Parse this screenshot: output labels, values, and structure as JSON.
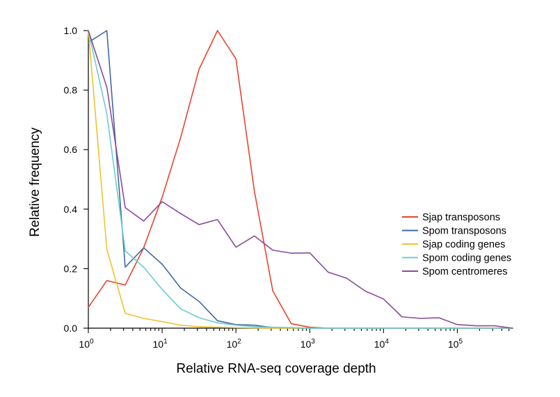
{
  "chart_data": {
    "type": "line",
    "x_scale": "log10",
    "xlabel": "Relative RNA-seq coverage depth",
    "ylabel": "Relative frequency",
    "xlim": [
      1,
      562341
    ],
    "ylim": [
      0,
      1
    ],
    "x_ticks": [
      {
        "value": 1,
        "base": "10",
        "exp": "0"
      },
      {
        "value": 10,
        "base": "10",
        "exp": "1"
      },
      {
        "value": 100,
        "base": "10",
        "exp": "2"
      },
      {
        "value": 1000,
        "base": "10",
        "exp": "3"
      },
      {
        "value": 10000,
        "base": "10",
        "exp": "4"
      },
      {
        "value": 100000,
        "base": "10",
        "exp": "5"
      }
    ],
    "y_ticks": [
      "0.0",
      "0.2",
      "0.4",
      "0.6",
      "0.8",
      "1.0"
    ],
    "legend_position": "right",
    "grid": false,
    "x": [
      1,
      1.78,
      3.16,
      5.62,
      10,
      17.8,
      31.6,
      56.2,
      100,
      178,
      316,
      562,
      1000,
      1780,
      3160,
      5620,
      10000,
      17800,
      31600,
      56200,
      100000,
      178000,
      316000,
      562000
    ],
    "series": [
      {
        "name": "Sjap transposons",
        "color": "#e5452f",
        "values": [
          0.07,
          0.16,
          0.145,
          0.27,
          0.44,
          0.64,
          0.87,
          1.0,
          0.905,
          0.46,
          0.125,
          0.015,
          0.003,
          0.0,
          0.0,
          0.0,
          0.0,
          0.0,
          0.0,
          0.0,
          0.0,
          0.0,
          0.0,
          0.0
        ]
      },
      {
        "name": "Spom transposons",
        "color": "#3f6aa0",
        "values": [
          0.96,
          1.0,
          0.205,
          0.27,
          0.215,
          0.135,
          0.09,
          0.025,
          0.012,
          0.01,
          0.002,
          0.0,
          0.0,
          0.0,
          0.0,
          0.0,
          0.0,
          0.0,
          0.0,
          0.0,
          0.0,
          0.0,
          0.0,
          0.0
        ]
      },
      {
        "name": "Sjap coding genes",
        "color": "#f0c22e",
        "values": [
          1.0,
          0.265,
          0.05,
          0.033,
          0.022,
          0.01,
          0.005,
          0.003,
          0.002,
          0.001,
          0.0,
          0.0,
          0.0,
          0.0,
          0.0,
          0.0,
          0.0,
          0.0,
          0.0,
          0.0,
          0.0,
          0.0,
          0.0,
          0.0
        ]
      },
      {
        "name": "Spom coding genes",
        "color": "#6cccd0",
        "values": [
          1.0,
          0.72,
          0.26,
          0.205,
          0.13,
          0.065,
          0.035,
          0.018,
          0.01,
          0.005,
          0.003,
          0.002,
          0.0,
          0.0,
          0.0,
          0.0,
          0.0,
          0.0,
          0.0,
          0.0,
          0.0,
          0.0,
          0.0,
          0.0
        ]
      },
      {
        "name": "Spom centromeres",
        "color": "#8a4a9c",
        "values": [
          1.0,
          0.81,
          0.405,
          0.36,
          0.425,
          0.385,
          0.348,
          0.365,
          0.272,
          0.31,
          0.262,
          0.252,
          0.253,
          0.188,
          0.168,
          0.125,
          0.098,
          0.038,
          0.033,
          0.035,
          0.012,
          0.008,
          0.008,
          0.0
        ]
      }
    ]
  }
}
